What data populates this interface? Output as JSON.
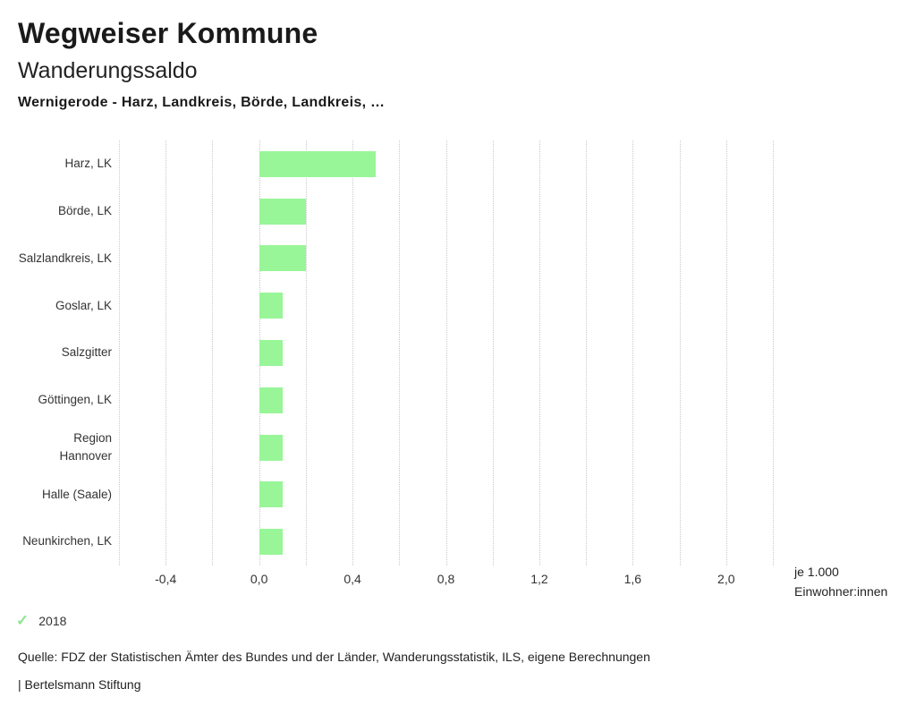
{
  "header": {
    "title": "Wegweiser Kommune",
    "subtitle": "Wanderungssaldo",
    "selection": "Wernigerode - Harz, Landkreis, Börde, Landkreis, …"
  },
  "chart_data": {
    "type": "bar",
    "orientation": "horizontal",
    "title": "Wanderungssaldo",
    "categories": [
      "Harz, LK",
      "Börde, LK",
      "Salzlandkreis, LK",
      "Goslar, LK",
      "Salzgitter",
      "Göttingen, LK",
      "Region Hannover",
      "Halle (Saale)",
      "Neunkirchen, LK"
    ],
    "series": [
      {
        "name": "2018",
        "values": [
          0.5,
          0.2,
          0.2,
          0.1,
          0.1,
          0.1,
          0.1,
          0.1,
          0.1
        ]
      }
    ],
    "xlim": [
      -0.6,
      2.2
    ],
    "grid_step": 0.2,
    "grid": "on",
    "ticks": [
      {
        "value": -0.4,
        "label": "-0,4"
      },
      {
        "value": 0.0,
        "label": "0,0"
      },
      {
        "value": 0.4,
        "label": "0,4"
      },
      {
        "value": 0.8,
        "label": "0,8"
      },
      {
        "value": 1.2,
        "label": "1,2"
      },
      {
        "value": 1.6,
        "label": "1,6"
      },
      {
        "value": 2.0,
        "label": "2,0"
      }
    ],
    "xlabel": "je 1.000 Einwohner:innen",
    "xlabel_lines": [
      "je 1.000",
      "Einwohner:innen"
    ],
    "bar_color": "#98f598",
    "grid_color": "#c9c9c9",
    "legend_position": "bottom-left"
  },
  "legend": {
    "items": [
      {
        "icon": "check-icon",
        "check_glyph": "✓",
        "label": "2018",
        "color": "#8de88d"
      }
    ]
  },
  "footer": {
    "source": "Quelle: FDZ der Statistischen Ämter des Bundes und der Länder, Wanderungsstatistik, ILS, eigene Berechnungen",
    "attribution": "| Bertelsmann Stiftung"
  }
}
